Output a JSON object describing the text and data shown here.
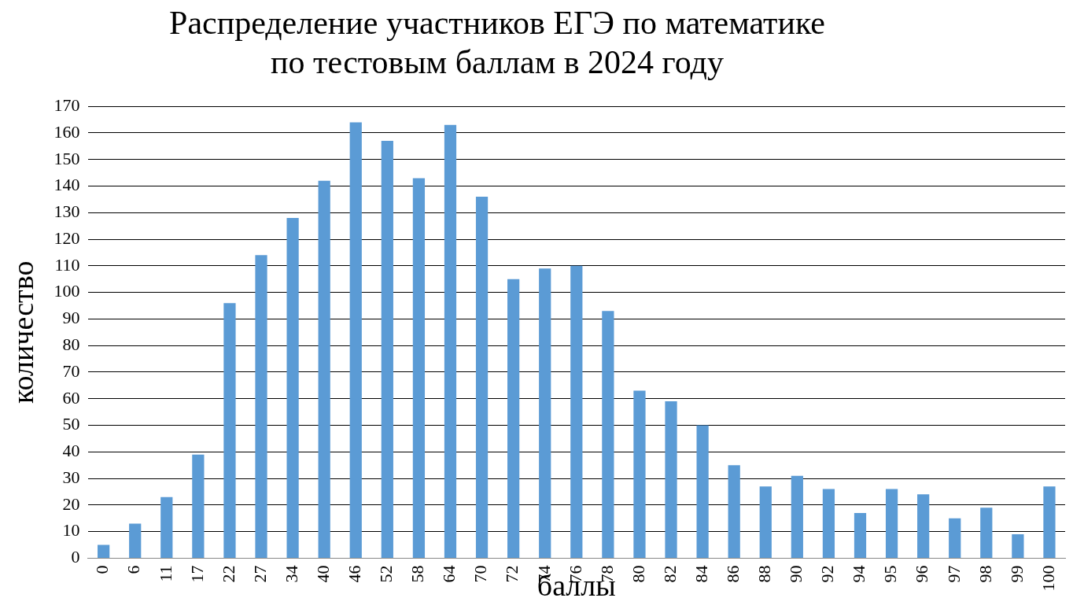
{
  "chart_data": {
    "type": "bar",
    "title": "Распределение участников  ЕГЭ по математике по тестовым баллам в 2024 году",
    "xlabel": "баллы",
    "ylabel": "количество",
    "categories": [
      "0",
      "6",
      "11",
      "17",
      "22",
      "27",
      "34",
      "40",
      "46",
      "52",
      "58",
      "64",
      "70",
      "72",
      "74",
      "76",
      "78",
      "80",
      "82",
      "84",
      "86",
      "88",
      "90",
      "92",
      "94",
      "95",
      "96",
      "97",
      "98",
      "99",
      "100"
    ],
    "values": [
      5,
      13,
      23,
      39,
      96,
      114,
      128,
      142,
      164,
      157,
      143,
      163,
      136,
      105,
      109,
      110,
      93,
      63,
      59,
      50,
      35,
      27,
      31,
      26,
      17,
      26,
      24,
      15,
      19,
      9,
      27
    ],
    "color": "#5b9bd5",
    "ylim": [
      0,
      170
    ],
    "yticks": [
      0,
      10,
      20,
      30,
      40,
      50,
      60,
      70,
      80,
      90,
      100,
      110,
      120,
      130,
      140,
      150,
      160,
      170
    ],
    "grid": "y"
  }
}
